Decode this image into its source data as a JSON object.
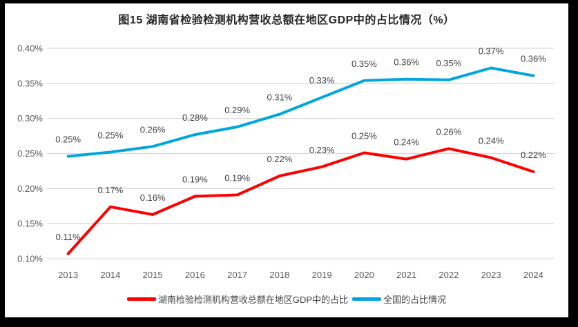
{
  "chart_data": {
    "type": "line",
    "title": "图15 湖南省检验检测机构营收总额在地区GDP中的占比情况（%）",
    "categories": [
      "2013",
      "2014",
      "2015",
      "2016",
      "2017",
      "2018",
      "2019",
      "2020",
      "2021",
      "2022",
      "2023",
      "2024"
    ],
    "series": [
      {
        "name": "湖南检验检测机构营收总额在地区GDP中的占比",
        "color": "#FF0000",
        "values": [
          0.11,
          0.17,
          0.16,
          0.19,
          0.19,
          0.22,
          0.23,
          0.25,
          0.24,
          0.26,
          0.24,
          0.22
        ],
        "plot_values": [
          0.107,
          0.174,
          0.163,
          0.189,
          0.191,
          0.218,
          0.231,
          0.251,
          0.242,
          0.257,
          0.244,
          0.224
        ],
        "labels": [
          "0.11%",
          "0.17%",
          "0.16%",
          "0.19%",
          "0.19%",
          "0.22%",
          "0.23%",
          "0.25%",
          "0.24%",
          "0.26%",
          "0.24%",
          "0.22%"
        ]
      },
      {
        "name": "全国的占比情况",
        "color": "#00A6E0",
        "values": [
          0.25,
          0.25,
          0.26,
          0.28,
          0.29,
          0.31,
          0.33,
          0.35,
          0.36,
          0.35,
          0.37,
          0.36
        ],
        "plot_values": [
          0.246,
          0.252,
          0.26,
          0.277,
          0.288,
          0.306,
          0.33,
          0.354,
          0.356,
          0.355,
          0.372,
          0.361
        ],
        "labels": [
          "0.25%",
          "0.25%",
          "0.26%",
          "0.28%",
          "0.29%",
          "0.31%",
          "0.33%",
          "0.35%",
          "0.36%",
          "0.35%",
          "0.37%",
          "0.36%"
        ]
      }
    ],
    "xlabel": "",
    "ylabel": "",
    "ylim": [
      0.1,
      0.4
    ],
    "yticks": {
      "values": [
        0.4,
        0.35,
        0.3,
        0.25,
        0.2,
        0.15,
        0.1
      ],
      "labels": [
        "0.40%",
        "0.35%",
        "0.30%",
        "0.25%",
        "0.20%",
        "0.15%",
        "0.10%"
      ]
    },
    "grid": "horizontal",
    "legend_position": "bottom",
    "units": "%"
  },
  "style": {
    "frame_color": "#000000",
    "panel_background": "#FFFFFF",
    "gridline_color": "#D9D9D9",
    "axis_text_color": "#595959",
    "data_label_color": "#3F3F3F",
    "title_color": "#262626"
  }
}
